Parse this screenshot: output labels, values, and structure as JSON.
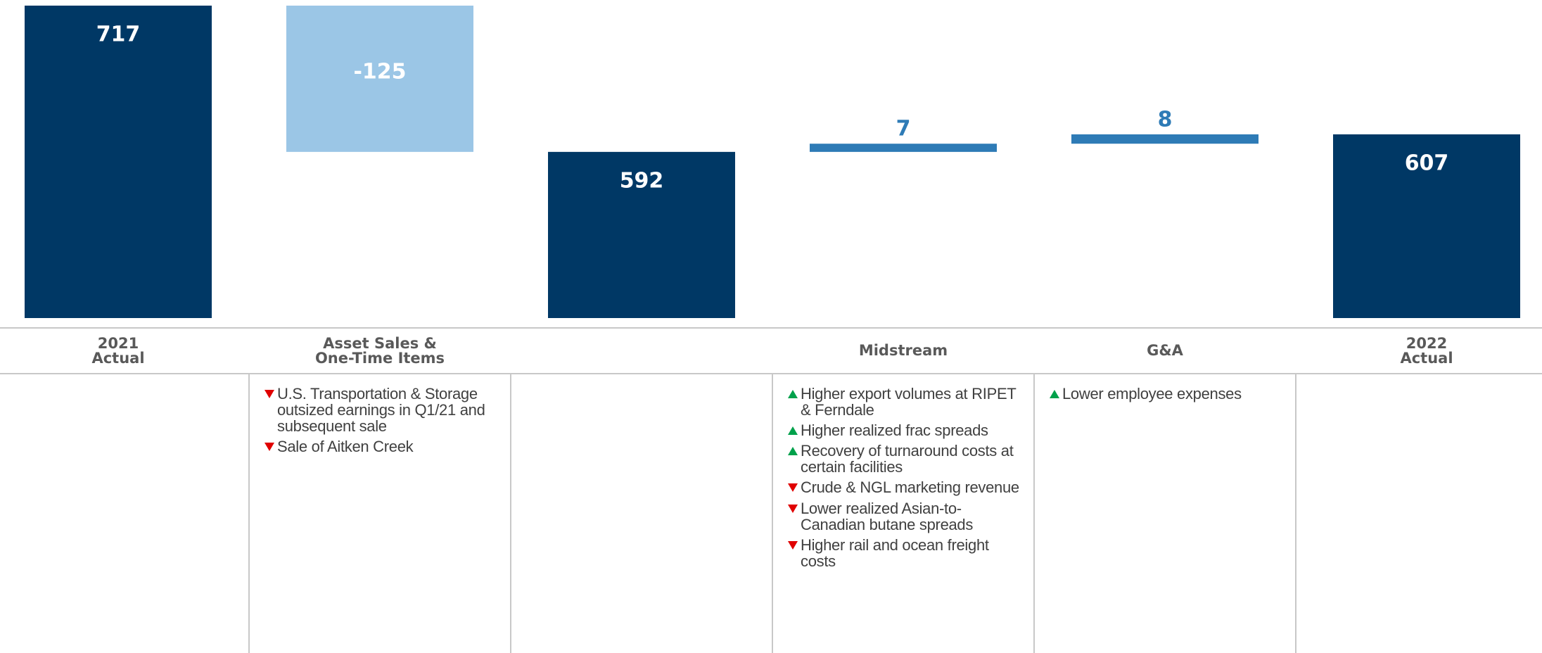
{
  "chart_data": {
    "type": "waterfall",
    "categories": [
      "2021\nActual",
      "Asset Sales &\nOne-Time Items",
      null,
      "Midstream",
      "G&A",
      "2022\nActual"
    ],
    "values": [
      717,
      -125,
      592,
      7,
      8,
      607
    ],
    "measure": [
      "total",
      "relative",
      "total",
      "relative",
      "relative",
      "total"
    ],
    "colors": {
      "total": "#003865",
      "negative": "#9bc6e6",
      "positive": "#2e7bb6"
    },
    "ylim": [
      450,
      720
    ],
    "notes": [
      [],
      [
        {
          "direction": "down",
          "text": "U.S. Transportation & Storage outsized earnings in Q1/21 and subsequent sale"
        },
        {
          "direction": "down",
          "text": "Sale of Aitken Creek"
        }
      ],
      [],
      [
        {
          "direction": "up",
          "text": "Higher export volumes at RIPET & Ferndale"
        },
        {
          "direction": "up",
          "text": "Higher realized frac spreads"
        },
        {
          "direction": "up",
          "text": "Recovery of turnaround costs at certain facilities"
        },
        {
          "direction": "down",
          "text": "Crude & NGL marketing revenue"
        },
        {
          "direction": "down",
          "text": "Lower realized Asian-to-Canadian butane spreads"
        },
        {
          "direction": "down",
          "text": "Higher rail and ocean freight costs"
        }
      ],
      [
        {
          "direction": "up",
          "text": "Lower employee expenses"
        }
      ],
      []
    ]
  }
}
